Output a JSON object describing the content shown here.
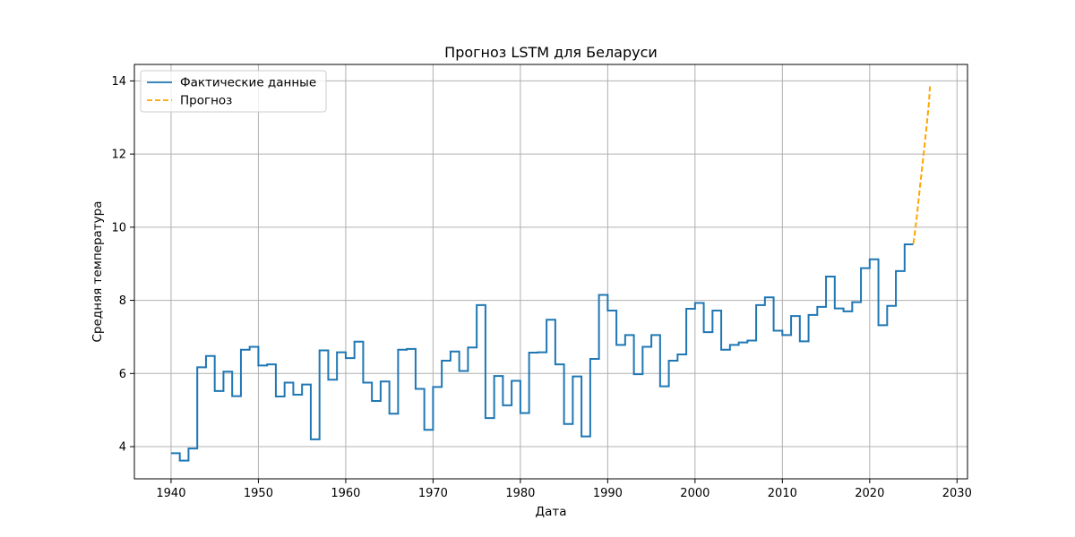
{
  "chart_data": {
    "type": "line",
    "title": "Прогноз LSTM для Беларуси",
    "xlabel": "Дата",
    "ylabel": "Средняя температура",
    "xlim": [
      1935.8,
      2031.2
    ],
    "ylim": [
      3.12,
      14.45
    ],
    "xticks": [
      1940,
      1950,
      1960,
      1970,
      1980,
      1990,
      2000,
      2010,
      2020,
      2030
    ],
    "yticks": [
      4,
      6,
      8,
      10,
      12,
      14
    ],
    "grid": true,
    "legend_position": "top-left",
    "colors": {
      "actual": "#1f77b4",
      "forecast": "#ffa500",
      "grid": "#b0b0b0"
    },
    "series": [
      {
        "name": "Фактические данные",
        "style": "solid",
        "step": true,
        "x": [
          1940,
          1941,
          1942,
          1943,
          1944,
          1945,
          1946,
          1947,
          1948,
          1949,
          1950,
          1951,
          1952,
          1953,
          1954,
          1955,
          1956,
          1957,
          1958,
          1959,
          1960,
          1961,
          1962,
          1963,
          1964,
          1965,
          1966,
          1967,
          1968,
          1969,
          1970,
          1971,
          1972,
          1973,
          1974,
          1975,
          1976,
          1977,
          1978,
          1979,
          1980,
          1981,
          1982,
          1983,
          1984,
          1985,
          1986,
          1987,
          1988,
          1989,
          1990,
          1991,
          1992,
          1993,
          1994,
          1995,
          1996,
          1997,
          1998,
          1999,
          2000,
          2001,
          2002,
          2003,
          2004,
          2005,
          2006,
          2007,
          2008,
          2009,
          2010,
          2011,
          2012,
          2013,
          2014,
          2015,
          2016,
          2017,
          2018,
          2019,
          2020,
          2021,
          2022,
          2023,
          2024,
          2025
        ],
        "y": [
          3.82,
          3.62,
          3.95,
          6.17,
          6.48,
          5.52,
          6.05,
          5.38,
          6.65,
          6.73,
          6.22,
          6.25,
          5.37,
          5.75,
          5.42,
          5.7,
          4.2,
          6.63,
          5.83,
          6.58,
          6.42,
          6.87,
          5.75,
          5.25,
          5.78,
          4.9,
          6.65,
          6.67,
          5.58,
          4.46,
          5.63,
          6.35,
          6.6,
          6.07,
          6.71,
          7.87,
          4.78,
          5.93,
          5.13,
          5.8,
          4.92,
          6.57,
          6.58,
          7.47,
          6.25,
          4.62,
          5.92,
          4.28,
          6.4,
          8.15,
          7.72,
          6.78,
          7.05,
          5.98,
          6.73,
          7.05,
          5.65,
          6.35,
          6.52,
          7.77,
          7.93,
          7.13,
          7.72,
          6.65,
          6.78,
          6.85,
          6.9,
          7.87,
          8.08,
          7.17,
          7.05,
          7.57,
          6.88,
          7.6,
          7.82,
          8.65,
          7.78,
          7.7,
          7.95,
          8.88,
          9.12,
          7.32,
          7.85,
          8.8,
          9.53,
          9.53
        ]
      },
      {
        "name": "Прогноз",
        "style": "dashed",
        "step": false,
        "x": [
          2025.0,
          2025.2,
          2025.4,
          2025.6,
          2025.8,
          2026.0,
          2026.2,
          2026.4,
          2026.6,
          2026.8,
          2026.9
        ],
        "y": [
          9.55,
          9.9,
          10.3,
          10.75,
          11.2,
          11.62,
          12.05,
          12.5,
          12.95,
          13.45,
          13.85
        ]
      }
    ]
  }
}
